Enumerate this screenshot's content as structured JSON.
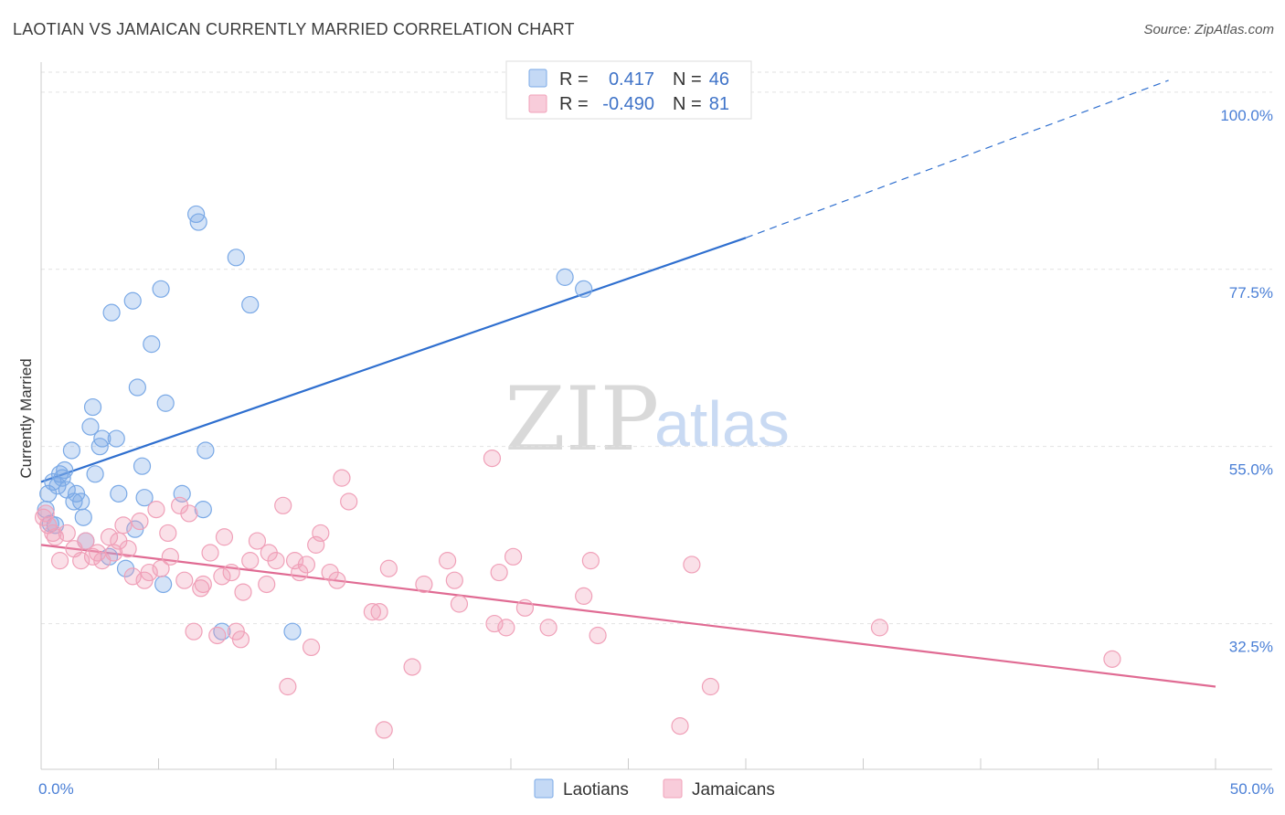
{
  "header": {
    "title": "LAOTIAN VS JAMAICAN CURRENTLY MARRIED CORRELATION CHART",
    "source": "Source: ZipAtlas.com"
  },
  "watermark": {
    "zip": "ZIP",
    "atlas": "atlas"
  },
  "colors": {
    "laotian": "#7aa9e6",
    "laotian_line": "#2f6fcf",
    "jamaican": "#f0a0b8",
    "jamaican_line": "#e06b93",
    "tick_text": "#4a7fd6",
    "grid": "#e2e2e2"
  },
  "legend": {
    "rows": [
      {
        "r_label": "R =",
        "r_value": "0.417",
        "n_label": "N =",
        "n_value": "46"
      },
      {
        "r_label": "R =",
        "r_value": "-0.490",
        "n_label": "N =",
        "n_value": "81"
      }
    ]
  },
  "chart_data": {
    "type": "scatter",
    "title": "LAOTIAN VS JAMAICAN CURRENTLY MARRIED CORRELATION CHART",
    "xlabel": "",
    "ylabel": "Currently Married",
    "xlim": [
      0,
      50
    ],
    "ylim": [
      14,
      103
    ],
    "x_tick_labels": [
      "0.0%",
      "50.0%"
    ],
    "y_ticks": [
      32.5,
      55.0,
      77.5,
      100.0
    ],
    "y_tick_labels": [
      "32.5%",
      "55.0%",
      "77.5%",
      "100.0%"
    ],
    "grid": true,
    "legend_position": "bottom",
    "series": [
      {
        "name": "Laotians",
        "r": 0.417,
        "n": 46,
        "trend": {
          "x": [
            0,
            30,
            48
          ],
          "y": [
            50.5,
            81.5,
            101.5
          ],
          "solid_until": 30
        },
        "points": [
          [
            0.3,
            49.0
          ],
          [
            0.4,
            45.2
          ],
          [
            0.5,
            50.5
          ],
          [
            0.7,
            50.0
          ],
          [
            0.8,
            51.5
          ],
          [
            0.9,
            51.0
          ],
          [
            1.0,
            52.0
          ],
          [
            1.1,
            49.5
          ],
          [
            1.3,
            54.5
          ],
          [
            1.4,
            48.0
          ],
          [
            1.7,
            48.0
          ],
          [
            1.8,
            46.0
          ],
          [
            1.9,
            43.0
          ],
          [
            2.1,
            57.5
          ],
          [
            2.2,
            60.0
          ],
          [
            2.3,
            51.5
          ],
          [
            2.5,
            55.0
          ],
          [
            2.6,
            56.0
          ],
          [
            2.9,
            41.0
          ],
          [
            3.0,
            72.0
          ],
          [
            3.2,
            56.0
          ],
          [
            3.3,
            49.0
          ],
          [
            3.6,
            39.5
          ],
          [
            3.9,
            73.5
          ],
          [
            4.0,
            44.5
          ],
          [
            4.1,
            62.5
          ],
          [
            4.3,
            52.5
          ],
          [
            4.4,
            48.5
          ],
          [
            4.7,
            68.0
          ],
          [
            5.1,
            75.0
          ],
          [
            5.2,
            37.5
          ],
          [
            5.3,
            60.5
          ],
          [
            6.0,
            49.0
          ],
          [
            6.6,
            84.5
          ],
          [
            6.7,
            83.5
          ],
          [
            6.9,
            47.0
          ],
          [
            7.0,
            54.5
          ],
          [
            7.7,
            31.5
          ],
          [
            8.3,
            79.0
          ],
          [
            8.9,
            73.0
          ],
          [
            10.7,
            31.5
          ],
          [
            22.3,
            76.5
          ],
          [
            23.1,
            75.0
          ],
          [
            0.6,
            45.0
          ],
          [
            1.5,
            49.0
          ],
          [
            0.2,
            47.0
          ]
        ]
      },
      {
        "name": "Jamaicans",
        "r": -0.49,
        "n": 81,
        "trend": {
          "x": [
            0,
            50
          ],
          "y": [
            42.5,
            24.5
          ]
        },
        "points": [
          [
            0.1,
            46.0
          ],
          [
            0.3,
            45.0
          ],
          [
            0.6,
            43.5
          ],
          [
            0.8,
            40.5
          ],
          [
            1.1,
            44.0
          ],
          [
            1.4,
            42.0
          ],
          [
            1.7,
            40.5
          ],
          [
            1.9,
            43.0
          ],
          [
            2.2,
            41.0
          ],
          [
            2.4,
            41.5
          ],
          [
            2.6,
            40.5
          ],
          [
            2.9,
            43.5
          ],
          [
            3.1,
            41.5
          ],
          [
            3.3,
            43.0
          ],
          [
            3.5,
            45.0
          ],
          [
            3.7,
            42.0
          ],
          [
            3.9,
            38.5
          ],
          [
            4.2,
            45.5
          ],
          [
            4.4,
            38.0
          ],
          [
            4.6,
            39.0
          ],
          [
            4.9,
            47.0
          ],
          [
            5.1,
            39.5
          ],
          [
            5.4,
            44.0
          ],
          [
            5.5,
            41.0
          ],
          [
            5.9,
            47.5
          ],
          [
            6.1,
            38.0
          ],
          [
            6.3,
            46.5
          ],
          [
            6.5,
            31.5
          ],
          [
            6.8,
            37.0
          ],
          [
            6.9,
            37.5
          ],
          [
            7.2,
            41.5
          ],
          [
            7.5,
            31.0
          ],
          [
            7.7,
            38.5
          ],
          [
            7.8,
            43.5
          ],
          [
            8.1,
            39.0
          ],
          [
            8.3,
            31.5
          ],
          [
            8.5,
            30.5
          ],
          [
            8.6,
            36.5
          ],
          [
            8.9,
            40.5
          ],
          [
            9.2,
            43.0
          ],
          [
            9.6,
            37.5
          ],
          [
            9.7,
            41.5
          ],
          [
            10.0,
            40.5
          ],
          [
            10.3,
            47.5
          ],
          [
            10.5,
            24.5
          ],
          [
            10.8,
            40.5
          ],
          [
            11.0,
            39.0
          ],
          [
            11.3,
            40.0
          ],
          [
            11.5,
            29.5
          ],
          [
            11.7,
            42.5
          ],
          [
            11.9,
            44.0
          ],
          [
            12.3,
            39.0
          ],
          [
            12.6,
            38.0
          ],
          [
            12.8,
            51.0
          ],
          [
            13.1,
            48.0
          ],
          [
            14.1,
            34.0
          ],
          [
            14.4,
            34.0
          ],
          [
            14.6,
            19.0
          ],
          [
            14.8,
            39.5
          ],
          [
            15.8,
            27.0
          ],
          [
            16.3,
            37.5
          ],
          [
            17.3,
            40.5
          ],
          [
            17.6,
            38.0
          ],
          [
            17.8,
            35.0
          ],
          [
            19.2,
            53.5
          ],
          [
            19.3,
            32.5
          ],
          [
            19.5,
            39.0
          ],
          [
            19.8,
            32.0
          ],
          [
            20.1,
            41.0
          ],
          [
            20.6,
            34.5
          ],
          [
            21.6,
            32.0
          ],
          [
            23.1,
            36.0
          ],
          [
            23.4,
            40.5
          ],
          [
            23.7,
            31.0
          ],
          [
            27.2,
            19.5
          ],
          [
            27.7,
            40.0
          ],
          [
            28.5,
            24.5
          ],
          [
            35.7,
            32.0
          ],
          [
            45.6,
            28.0
          ],
          [
            0.2,
            46.5
          ],
          [
            0.5,
            44.0
          ]
        ]
      }
    ]
  }
}
